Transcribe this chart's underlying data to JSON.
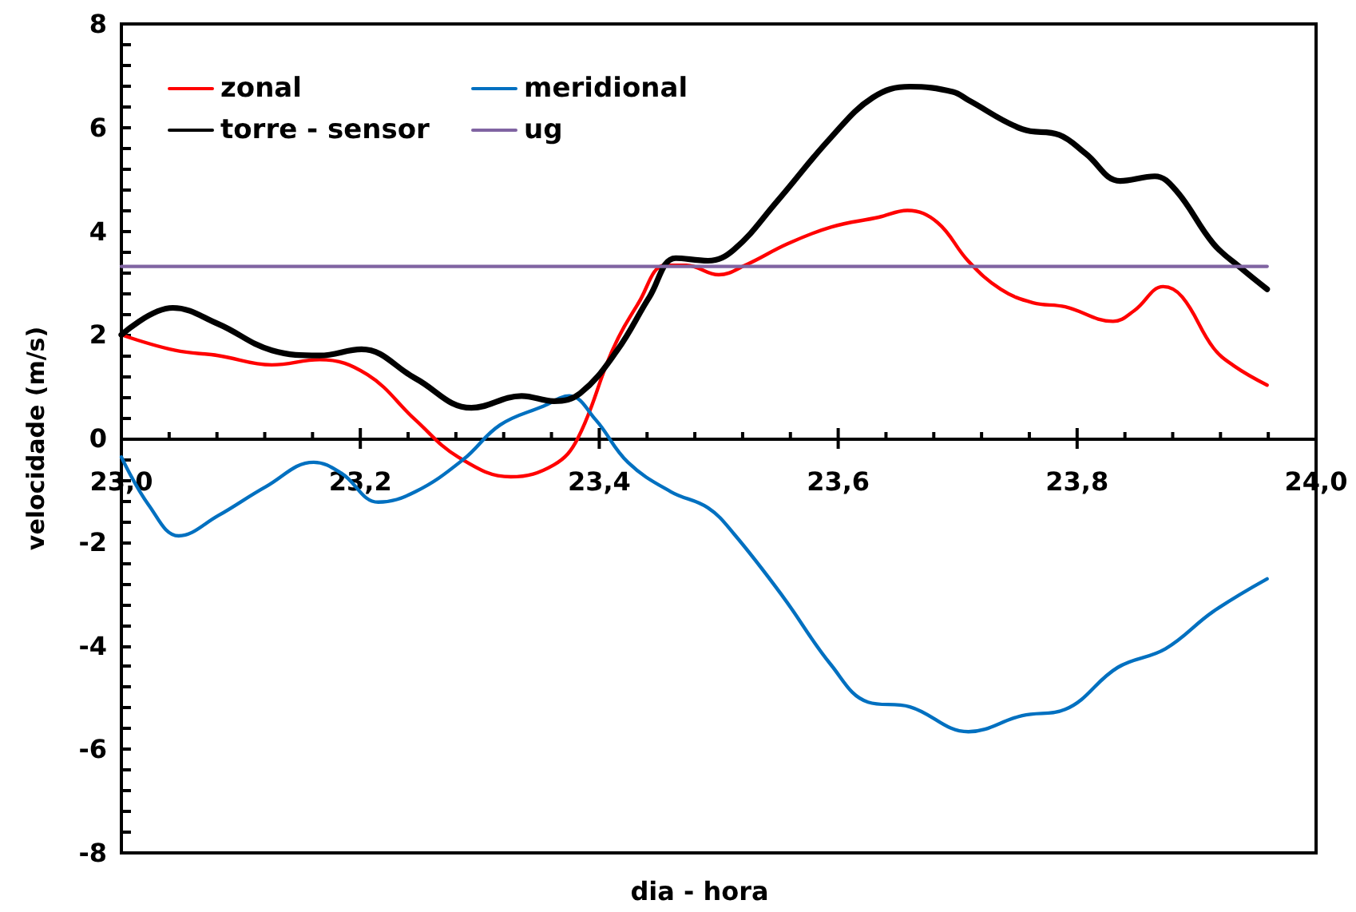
{
  "chart_data": {
    "type": "line",
    "xlabel": "dia - hora",
    "ylabel": "velocidade (m/s)",
    "xlim": [
      23,
      24
    ],
    "xticks": [
      {
        "value": 23,
        "label": "23,0"
      },
      {
        "value": 23.04,
        "label": null
      },
      {
        "value": 23.08,
        "label": null
      },
      {
        "value": 23.12,
        "label": null
      },
      {
        "value": 23.16,
        "label": null
      },
      {
        "value": 23.2,
        "label": "23,2"
      },
      {
        "value": 23.24,
        "label": null
      },
      {
        "value": 23.28,
        "label": null
      },
      {
        "value": 23.32,
        "label": null
      },
      {
        "value": 23.36,
        "label": null
      },
      {
        "value": 23.4,
        "label": "23,4"
      },
      {
        "value": 23.44,
        "label": null
      },
      {
        "value": 23.48,
        "label": null
      },
      {
        "value": 23.52,
        "label": null
      },
      {
        "value": 23.56,
        "label": null
      },
      {
        "value": 23.6,
        "label": "23,6"
      },
      {
        "value": 23.64,
        "label": null
      },
      {
        "value": 23.68,
        "label": null
      },
      {
        "value": 23.72,
        "label": null
      },
      {
        "value": 23.76,
        "label": null
      },
      {
        "value": 23.8,
        "label": "23,8"
      },
      {
        "value": 23.84,
        "label": null
      },
      {
        "value": 23.88,
        "label": null
      },
      {
        "value": 23.92,
        "label": null
      },
      {
        "value": 23.96,
        "label": null
      },
      {
        "value": 24,
        "label": "24,0"
      }
    ],
    "ylim": [
      -8,
      8
    ],
    "yticks": [
      -8,
      {
        "value": -7.6,
        "label": null
      },
      {
        "value": -7.2,
        "label": null
      },
      {
        "value": -6.8,
        "label": null
      },
      {
        "value": -6.4,
        "label": null
      },
      -6,
      {
        "value": -5.6,
        "label": null
      },
      {
        "value": -5.2,
        "label": null
      },
      {
        "value": -4.8,
        "label": null
      },
      {
        "value": -4.4,
        "label": null
      },
      -4,
      {
        "value": -3.6,
        "label": null
      },
      {
        "value": -3.2,
        "label": null
      },
      {
        "value": -2.8,
        "label": null
      },
      {
        "value": -2.4,
        "label": null
      },
      -2,
      {
        "value": -1.6,
        "label": null
      },
      {
        "value": -1.2,
        "label": null
      },
      {
        "value": -0.8,
        "label": null
      },
      {
        "value": -0.4,
        "label": null
      },
      0,
      {
        "value": 0.4,
        "label": null
      },
      {
        "value": 0.8,
        "label": null
      },
      {
        "value": 1.2,
        "label": null
      },
      {
        "value": 1.6,
        "label": null
      },
      2,
      {
        "value": 2.4,
        "label": null
      },
      {
        "value": 2.8,
        "label": null
      },
      {
        "value": 3.2,
        "label": null
      },
      {
        "value": 3.6,
        "label": null
      },
      4,
      {
        "value": 4.4,
        "label": null
      },
      {
        "value": 4.8,
        "label": null
      },
      {
        "value": 5.2,
        "label": null
      },
      {
        "value": 5.6,
        "label": null
      },
      6,
      {
        "value": 6.4,
        "label": null
      },
      {
        "value": 6.8,
        "label": null
      },
      {
        "value": 7.2,
        "label": null
      },
      {
        "value": 7.6,
        "label": null
      },
      8
    ],
    "legend": "top left",
    "marker": "none",
    "line_style": "solid",
    "series": [
      {
        "name": "zonal",
        "color": "#ff0000",
        "x": [
          23,
          23.045,
          23.081,
          23.126,
          23.166,
          23.206,
          23.246,
          23.282,
          23.326,
          23.362,
          23.382,
          23.411,
          23.433,
          23.455,
          23.473,
          23.5,
          23.522,
          23.558,
          23.594,
          23.634,
          23.658,
          23.683,
          23.709,
          23.736,
          23.763,
          23.79,
          23.83,
          23.848,
          23.872,
          23.888,
          23.914,
          23.932,
          23.959
        ],
        "values": [
          2.0,
          1.7,
          1.6,
          1.42,
          1.52,
          1.23,
          0.36,
          -0.36,
          -0.74,
          -0.51,
          0.0,
          1.7,
          2.62,
          3.34,
          3.34,
          3.16,
          3.34,
          3.76,
          4.08,
          4.27,
          4.4,
          4.17,
          3.42,
          2.88,
          2.62,
          2.54,
          2.26,
          2.47,
          2.93,
          2.73,
          1.75,
          1.39,
          1.03
        ]
      },
      {
        "name": "meridional",
        "color": "#0070c0",
        "x": [
          23,
          23.023,
          23.048,
          23.081,
          23.121,
          23.161,
          23.184,
          23.215,
          23.246,
          23.286,
          23.317,
          23.353,
          23.375,
          23.397,
          23.424,
          23.46,
          23.491,
          23.513,
          23.553,
          23.594,
          23.625,
          23.66,
          23.709,
          23.754,
          23.79,
          23.834,
          23.874,
          23.914,
          23.959
        ],
        "values": [
          -0.36,
          -1.29,
          -1.88,
          -1.49,
          -0.93,
          -0.46,
          -0.67,
          -1.23,
          -1.03,
          -0.41,
          0.26,
          0.62,
          0.82,
          0.36,
          -0.46,
          -1.03,
          -1.34,
          -1.85,
          -3.03,
          -4.37,
          -5.09,
          -5.18,
          -5.66,
          -5.35,
          -5.23,
          -4.42,
          -4.06,
          -3.34,
          -2.71
        ]
      },
      {
        "name": "torre - sensor",
        "color": "#000000",
        "x": [
          23,
          23.043,
          23.081,
          23.126,
          23.166,
          23.201,
          23.246,
          23.293,
          23.335,
          23.362,
          23.384,
          23.415,
          23.442,
          23.464,
          23.491,
          23.513,
          23.549,
          23.594,
          23.629,
          23.66,
          23.696,
          23.709,
          23.754,
          23.785,
          23.807,
          23.836,
          23.865,
          23.883,
          23.914,
          23.937,
          23.959
        ],
        "values": [
          2.0,
          2.52,
          2.21,
          1.7,
          1.6,
          1.72,
          1.16,
          0.59,
          0.82,
          0.72,
          0.87,
          1.7,
          2.73,
          3.48,
          3.43,
          3.65,
          4.58,
          5.81,
          6.58,
          6.79,
          6.69,
          6.53,
          5.97,
          5.86,
          5.5,
          4.97,
          5.06,
          4.78,
          3.76,
          3.29,
          2.88
        ]
      },
      {
        "name": "ug",
        "color": "#8064a2",
        "x": [
          23,
          23.959
        ],
        "values": [
          3.32,
          3.32
        ]
      }
    ]
  }
}
